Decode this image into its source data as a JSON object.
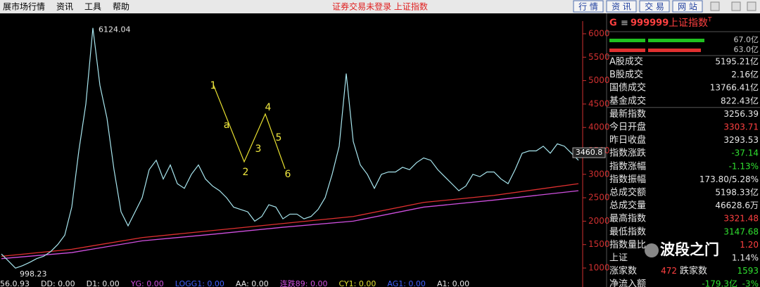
{
  "menu": [
    "展市场行情",
    "资讯",
    "工具",
    "帮助"
  ],
  "status": "证券交易未登录 上证指数",
  "buttons": [
    "行 情",
    "资 讯",
    "交 易",
    "网 站"
  ],
  "chart_data": {
    "type": "line",
    "series": [
      {
        "color": "#a8e6ef",
        "values": [
          1300,
          1150,
          998.23,
          1050,
          1120,
          1200,
          1250,
          1350,
          1500,
          1700,
          2300,
          3500,
          4500,
          6124.04,
          4900,
          4200,
          3100,
          2200,
          1900,
          2200,
          2500,
          3100,
          3300,
          2900,
          3200,
          2800,
          2700,
          3000,
          3200,
          2900,
          2750,
          2650,
          2500,
          2300,
          2250,
          2200,
          2000,
          2100,
          2350,
          2300,
          2050,
          2150,
          2150,
          2050,
          2100,
          2250,
          2500,
          3000,
          3600,
          5150,
          3700,
          3200,
          3000,
          2700,
          3000,
          3050,
          3050,
          3150,
          3100,
          3250,
          3350,
          3300,
          3100,
          2950,
          2800,
          2650,
          2750,
          3000,
          2950,
          3050,
          3050,
          2900,
          2800,
          3100,
          3450,
          3500,
          3500,
          3600,
          3450,
          3650,
          3600,
          3450,
          3300
        ]
      }
    ],
    "moving_averages": [
      {
        "color": "#e03030",
        "x": [
          0,
          10,
          20,
          30,
          40,
          50,
          60,
          70,
          82
        ],
        "values": [
          1250,
          1400,
          1650,
          1800,
          1950,
          2100,
          2400,
          2550,
          2800
        ]
      },
      {
        "color": "#d050e0",
        "x": [
          0,
          10,
          20,
          30,
          40,
          50,
          60,
          70,
          82
        ],
        "values": [
          1200,
          1330,
          1580,
          1720,
          1870,
          2000,
          2300,
          2450,
          2650
        ]
      }
    ],
    "last_price": 3460.8,
    "ylim": [
      595,
      6270
    ],
    "yticks": [
      1000,
      1500,
      2000,
      2500,
      3000,
      3500,
      4000,
      4500,
      5000,
      5500,
      6000
    ],
    "axis_color": "#d03030",
    "wave_labels": [
      "1",
      "a",
      "2",
      "3",
      "4",
      "5",
      "6"
    ]
  },
  "quote": {
    "prefix": "G",
    "menu_icon": "≡",
    "code": "999999",
    "name": "上证指数",
    "superscript": "T",
    "bar_labels": [
      "67.0亿",
      "63.0亿"
    ],
    "rows": [
      {
        "label": "A股成交",
        "value": "5195.21亿",
        "color": "#e8e8e8"
      },
      {
        "label": "B股成交",
        "value": "2.16亿",
        "color": "#e8e8e8"
      },
      {
        "label": "国债成交",
        "value": "13766.41亿",
        "color": "#e8e8e8"
      },
      {
        "label": "基金成交",
        "value": "822.43亿",
        "color": "#e8e8e8"
      },
      {
        "label": "最新指数",
        "value": "3256.39",
        "color": "#e8e8e8"
      },
      {
        "label": "今日开盘",
        "value": "3303.71",
        "color": "#ff4040"
      },
      {
        "label": "昨日收盘",
        "value": "3293.53",
        "color": "#e8e8e8"
      },
      {
        "label": "指数涨跌",
        "value": "-37.14",
        "color": "#30e030"
      },
      {
        "label": "指数涨幅",
        "value": "-1.13%",
        "color": "#30e030"
      },
      {
        "label": "指数振幅",
        "value": "173.80/5.28%",
        "color": "#e8e8e8"
      },
      {
        "label": "总成交额",
        "value": "5198.33亿",
        "color": "#e8e8e8"
      },
      {
        "label": "总成交量",
        "value": "46628.6万",
        "color": "#e8e8e8"
      },
      {
        "label": "最高指数",
        "value": "3321.48",
        "color": "#ff4040"
      },
      {
        "label": "最低指数",
        "value": "3147.68",
        "color": "#30e030"
      },
      {
        "label": "指数量比",
        "value": "1.20",
        "color": "#ff4040"
      },
      {
        "label": "上证",
        "value": "1.14%",
        "color": "#e8e8e8"
      }
    ],
    "up_label": "涨家数",
    "up_count": "472",
    "down_label": "跌家数",
    "down_count": "1593",
    "flow_label": "净流入额",
    "flow_value": "-179.3亿",
    "flow_pct": "-3%"
  },
  "indicators": [
    {
      "text": "56.0.93",
      "color": "#e8e8e8"
    },
    {
      "text": "DD: 0.00",
      "color": "#e8e8e8"
    },
    {
      "text": "D1: 0.00",
      "color": "#e8e8e8"
    },
    {
      "text": "YG: 0.00",
      "color": "#d050e0"
    },
    {
      "text": "LOGG1: 0.00",
      "color": "#4060ff"
    },
    {
      "text": "AA: 0.00",
      "color": "#e8e8e8"
    },
    {
      "text": "连跌89: 0.00",
      "color": "#d050e0"
    },
    {
      "text": "CY1: 0.00",
      "color": "#e0e030"
    },
    {
      "text": "AG1: 0.00",
      "color": "#4060ff"
    },
    {
      "text": "A1: 0.00",
      "color": "#e8e8e8"
    }
  ],
  "watermark": "波段之门"
}
